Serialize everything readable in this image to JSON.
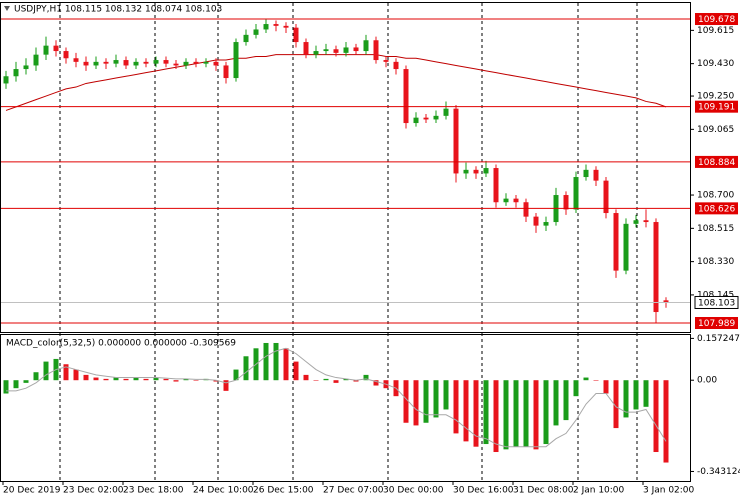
{
  "chart_data": [
    {
      "type": "candlestick",
      "title": "USDJPY,H1  108.115 108.132 108.074 108.103",
      "categories": [
        "20 Dec 2019",
        null,
        null,
        null,
        null,
        null,
        "23 Dec 02:00",
        null,
        null,
        null,
        null,
        null,
        "23 Dec 18:00",
        null,
        null,
        null,
        null,
        null,
        null,
        "24 Dec 10:00",
        null,
        null,
        null,
        null,
        null,
        "26 Dec 15:00",
        null,
        null,
        null,
        null,
        null,
        null,
        "27 Dec 07:00",
        null,
        null,
        null,
        null,
        null,
        "30 Dec 00:00",
        null,
        null,
        null,
        null,
        null,
        null,
        "30 Dec 16:00",
        null,
        null,
        null,
        null,
        null,
        "31 Dec 08:00",
        null,
        null,
        null,
        null,
        null,
        "2 Jan 10:00",
        null,
        null,
        null,
        null,
        null,
        null,
        "3 Jan 02:00",
        null,
        null
      ],
      "open": [
        109.32,
        109.36,
        109.4,
        109.42,
        109.48,
        109.53,
        109.5,
        109.46,
        109.44,
        109.42,
        109.44,
        109.43,
        109.45,
        109.42,
        109.44,
        109.43,
        109.45,
        109.43,
        109.42,
        109.44,
        109.43,
        109.44,
        109.42,
        109.35,
        109.55,
        109.59,
        109.62,
        109.65,
        109.64,
        109.63,
        109.55,
        109.48,
        109.5,
        109.51,
        109.49,
        109.52,
        109.5,
        109.56,
        109.45,
        109.44,
        109.4,
        109.1,
        109.13,
        109.12,
        109.14,
        109.18,
        108.82,
        108.84,
        108.82,
        108.85,
        108.66,
        108.68,
        108.66,
        108.58,
        108.53,
        108.55,
        108.7,
        108.62,
        108.8,
        108.84,
        108.78,
        108.6,
        108.28,
        108.54,
        108.56,
        108.55,
        108.115
      ],
      "high": [
        109.39,
        109.44,
        109.46,
        109.52,
        109.58,
        109.56,
        109.52,
        109.49,
        109.47,
        109.47,
        109.46,
        109.48,
        109.47,
        109.46,
        109.46,
        109.47,
        109.47,
        109.45,
        109.46,
        109.46,
        109.46,
        109.46,
        109.44,
        109.57,
        109.62,
        109.65,
        109.68,
        109.67,
        109.66,
        109.65,
        109.57,
        109.53,
        109.54,
        109.53,
        109.55,
        109.54,
        109.59,
        109.58,
        109.47,
        109.46,
        109.42,
        109.16,
        109.15,
        109.17,
        109.22,
        109.2,
        108.88,
        108.86,
        108.89,
        108.87,
        108.71,
        108.7,
        108.68,
        108.6,
        108.58,
        108.74,
        108.72,
        108.83,
        108.87,
        108.86,
        108.8,
        108.62,
        108.57,
        108.59,
        108.62,
        108.57,
        108.132
      ],
      "low": [
        109.29,
        109.33,
        109.37,
        109.39,
        109.45,
        109.47,
        109.43,
        109.41,
        109.39,
        109.4,
        109.4,
        109.41,
        109.4,
        109.4,
        109.41,
        109.41,
        109.41,
        109.4,
        109.4,
        109.41,
        109.41,
        109.39,
        109.32,
        109.33,
        109.53,
        109.57,
        109.6,
        109.61,
        109.6,
        109.52,
        109.46,
        109.46,
        109.48,
        109.47,
        109.47,
        109.48,
        109.48,
        109.43,
        109.41,
        109.37,
        109.07,
        109.08,
        109.1,
        109.1,
        109.12,
        108.77,
        108.79,
        108.79,
        108.8,
        108.63,
        108.64,
        108.63,
        108.55,
        108.49,
        108.5,
        108.53,
        108.59,
        108.6,
        108.78,
        108.75,
        108.57,
        108.24,
        108.26,
        108.52,
        108.52,
        107.99,
        108.074
      ],
      "close": [
        109.36,
        109.4,
        109.42,
        109.48,
        109.53,
        109.5,
        109.46,
        109.44,
        109.42,
        109.44,
        109.43,
        109.45,
        109.42,
        109.44,
        109.43,
        109.45,
        109.43,
        109.42,
        109.44,
        109.43,
        109.44,
        109.42,
        109.35,
        109.55,
        109.59,
        109.62,
        109.65,
        109.64,
        109.63,
        109.55,
        109.48,
        109.5,
        109.51,
        109.49,
        109.52,
        109.5,
        109.56,
        109.45,
        109.44,
        109.4,
        109.1,
        109.13,
        109.12,
        109.14,
        109.18,
        108.82,
        108.84,
        108.82,
        108.85,
        108.66,
        108.68,
        108.66,
        108.58,
        108.53,
        108.55,
        108.7,
        108.62,
        108.8,
        108.84,
        108.78,
        108.6,
        108.28,
        108.54,
        108.56,
        108.55,
        108.05,
        108.103
      ],
      "ma": [
        109.17,
        109.19,
        109.21,
        109.23,
        109.25,
        109.27,
        109.29,
        109.3,
        109.32,
        109.33,
        109.34,
        109.35,
        109.36,
        109.37,
        109.38,
        109.39,
        109.4,
        109.41,
        109.42,
        109.43,
        109.44,
        109.45,
        109.45,
        109.46,
        109.46,
        109.47,
        109.47,
        109.48,
        109.48,
        109.48,
        109.48,
        109.48,
        109.48,
        109.48,
        109.48,
        109.48,
        109.48,
        109.48,
        109.47,
        109.47,
        109.46,
        109.46,
        109.45,
        109.44,
        109.43,
        109.42,
        109.41,
        109.4,
        109.39,
        109.38,
        109.37,
        109.36,
        109.35,
        109.34,
        109.33,
        109.32,
        109.31,
        109.3,
        109.29,
        109.28,
        109.27,
        109.26,
        109.25,
        109.24,
        109.22,
        109.21,
        109.19
      ],
      "up_color": "#1a9c1a",
      "down_color": "#e8141c",
      "ma_color": "#c00000",
      "ylim": [
        107.939,
        109.767
      ],
      "yticks": [
        109.615,
        {
          "value": 109.43,
          "label": "109.430"
        },
        {
          "value": 109.25,
          "label": "109.250"
        },
        109.065,
        {
          "value": 108.7,
          "label": "108.700"
        },
        108.515,
        {
          "value": 108.33,
          "label": "108.330"
        },
        108.145
      ],
      "levels": [
        {
          "value": 109.678,
          "color": "#e00000"
        },
        {
          "value": 109.191,
          "color": "#e00000"
        },
        {
          "value": 108.884,
          "color": "#e00000"
        },
        {
          "value": 108.626,
          "color": "#e00000"
        },
        {
          "value": 107.989,
          "color": "#e00000"
        }
      ],
      "last_price": 108.103
    },
    {
      "type": "macd",
      "title": "MACD_color(5,32,5) 0.000000 0.000000 -0.309569",
      "values": [
        -0.05,
        -0.03,
        -0.01,
        0.03,
        0.07,
        0.08,
        0.06,
        0.04,
        0.02,
        0.01,
        0.005,
        0.01,
        0.005,
        0.01,
        0.005,
        0.01,
        0.005,
        -0.005,
        0.005,
        0.0,
        0.005,
        -0.005,
        -0.04,
        0.04,
        0.09,
        0.12,
        0.14,
        0.14,
        0.12,
        0.07,
        0.02,
        0.0,
        0.005,
        -0.01,
        0.005,
        -0.005,
        0.02,
        -0.02,
        -0.03,
        -0.06,
        -0.16,
        -0.17,
        -0.16,
        -0.14,
        -0.11,
        -0.2,
        -0.23,
        -0.25,
        -0.24,
        -0.27,
        -0.26,
        -0.25,
        -0.25,
        -0.26,
        -0.24,
        -0.17,
        -0.15,
        -0.06,
        0.01,
        0.0,
        -0.05,
        -0.18,
        -0.14,
        -0.11,
        -0.1,
        -0.27,
        -0.309569
      ],
      "signal": [
        -0.04,
        -0.04,
        -0.03,
        -0.01,
        0.02,
        0.04,
        0.05,
        0.04,
        0.03,
        0.02,
        0.015,
        0.01,
        0.01,
        0.01,
        0.01,
        0.01,
        0.008,
        0.005,
        0.005,
        0.003,
        0.003,
        0.0,
        -0.01,
        0.0,
        0.03,
        0.06,
        0.09,
        0.11,
        0.12,
        0.1,
        0.07,
        0.04,
        0.02,
        0.01,
        0.005,
        0.0,
        0.005,
        -0.005,
        -0.015,
        -0.03,
        -0.07,
        -0.11,
        -0.13,
        -0.13,
        -0.13,
        -0.15,
        -0.18,
        -0.21,
        -0.22,
        -0.24,
        -0.25,
        -0.25,
        -0.25,
        -0.25,
        -0.25,
        -0.22,
        -0.2,
        -0.15,
        -0.09,
        -0.05,
        -0.05,
        -0.1,
        -0.12,
        -0.12,
        -0.11,
        -0.17,
        -0.23
      ],
      "up_color": "#1a9c1a",
      "down_color": "#e8141c",
      "signal_color": "#a8a8a8",
      "ylim": [
        -0.379,
        0.17
      ],
      "yticks": [
        0.157247,
        {
          "value": 0,
          "label": "0.00"
        },
        -0.343124
      ]
    }
  ]
}
